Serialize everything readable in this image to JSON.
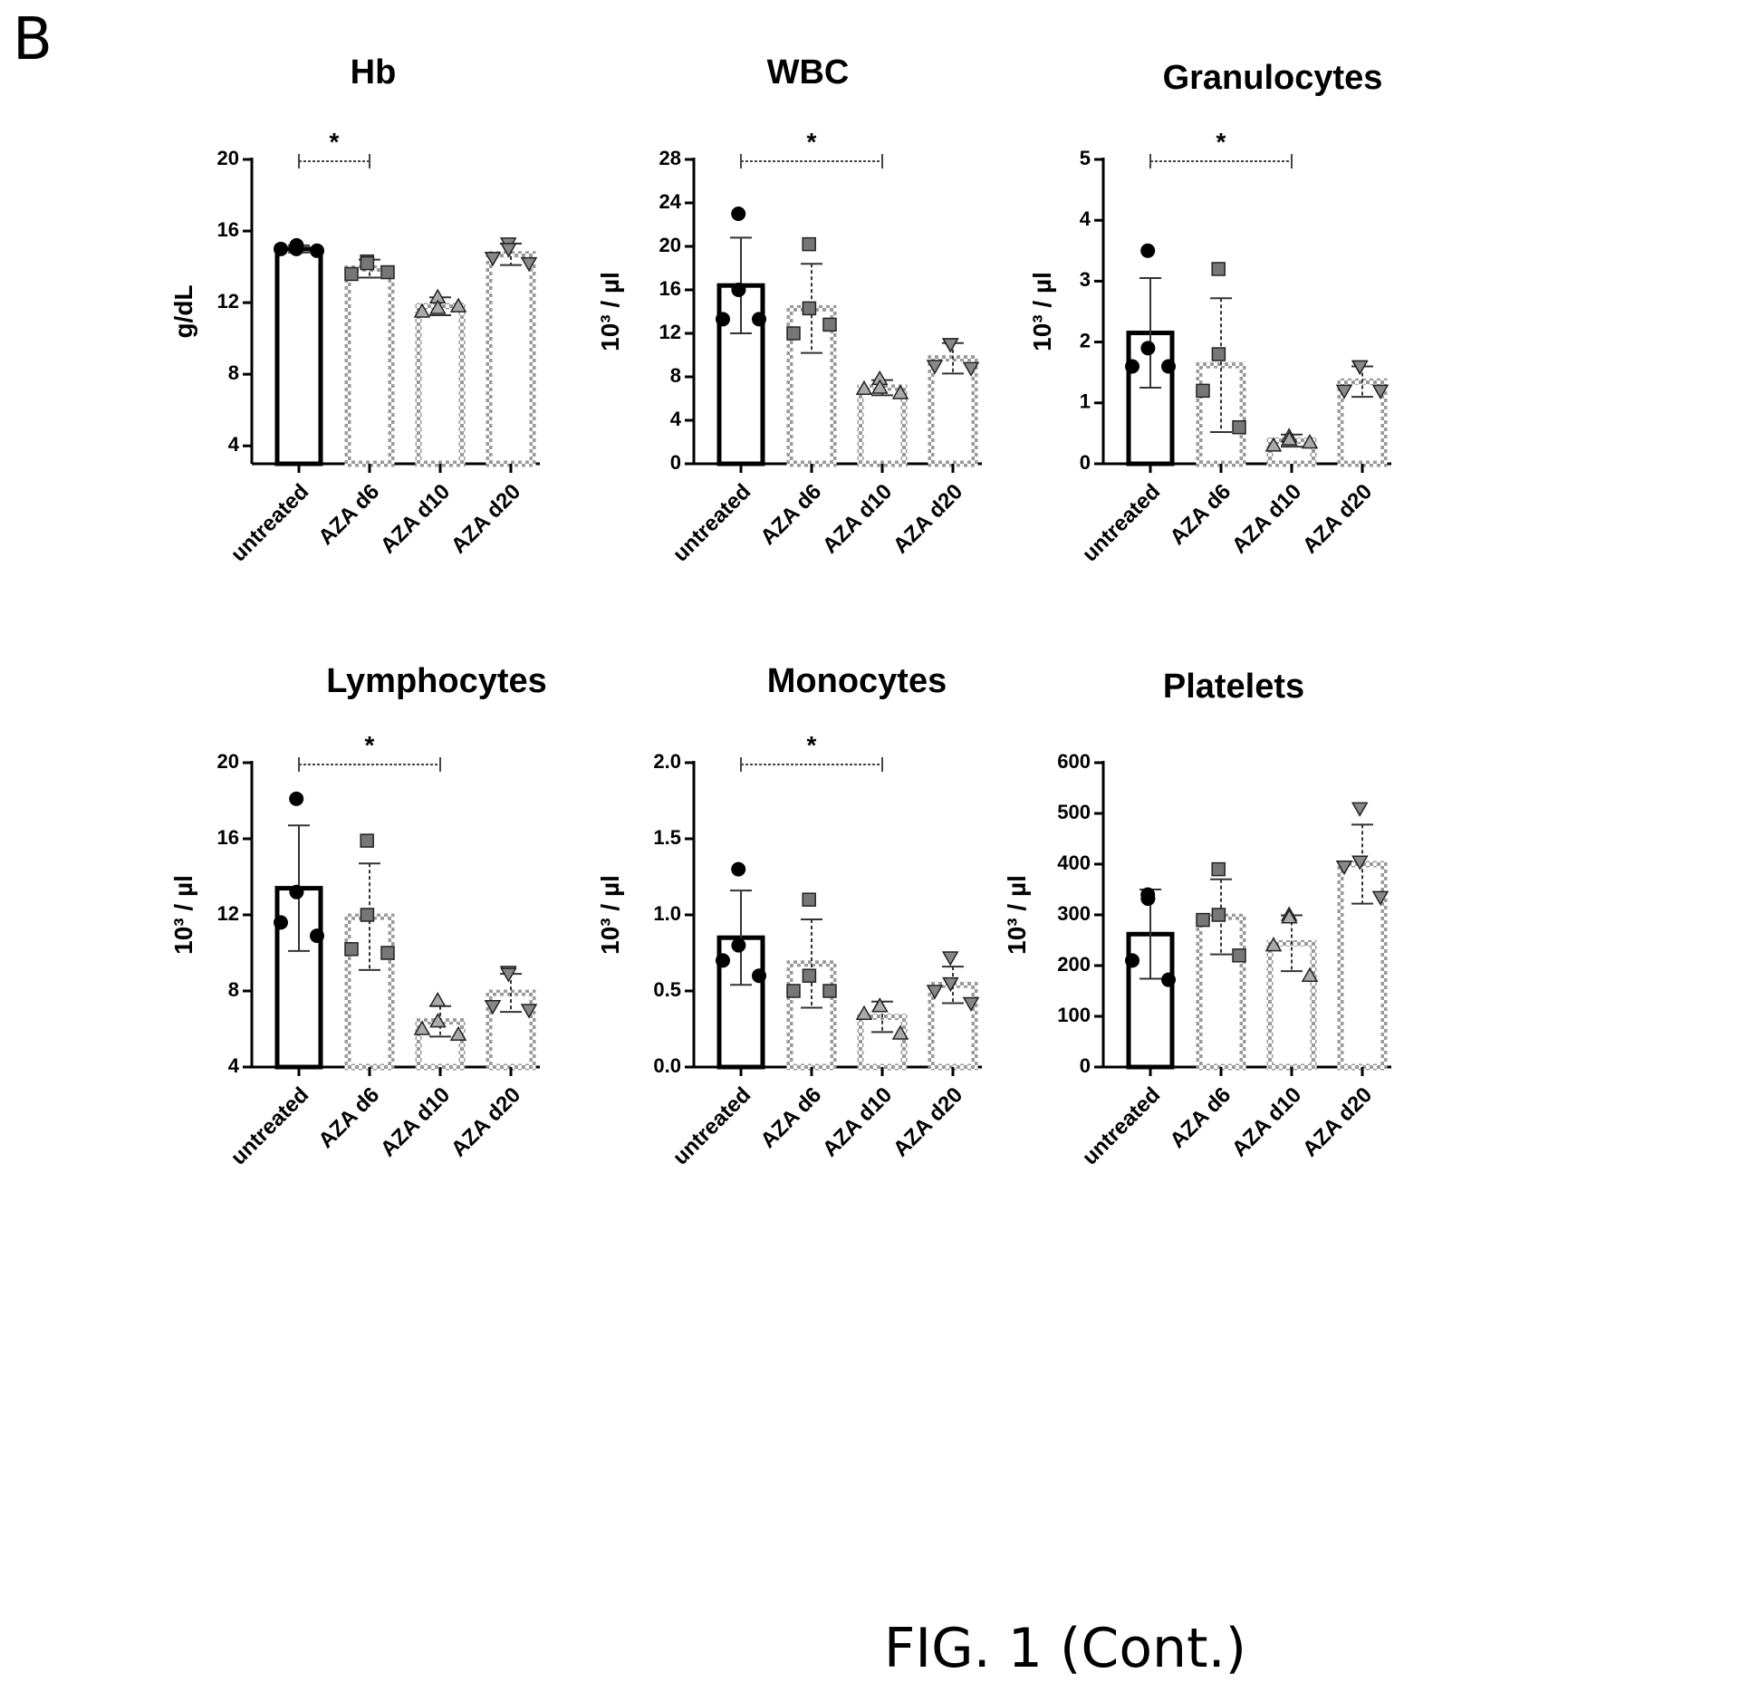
{
  "figure": {
    "panel_letter": "B",
    "caption": "FIG. 1 (Cont.)"
  },
  "chart_data": [
    {
      "type": "bar",
      "title": "Hb",
      "ylabel": "g/dL",
      "ylim": [
        3,
        20
      ],
      "yticks": [
        4,
        8,
        12,
        16,
        20
      ],
      "categories": [
        "untreated",
        "AZA d6",
        "AZA d10",
        "AZA d20"
      ],
      "values": [
        15.0,
        13.9,
        11.8,
        14.7
      ],
      "sd": [
        0.2,
        0.5,
        0.5,
        0.6
      ],
      "points": [
        [
          15.0,
          15.2,
          15.0,
          14.9
        ],
        [
          14.3,
          14.2,
          13.6,
          13.7
        ],
        [
          12.3,
          11.7,
          11.5,
          11.8
        ],
        [
          15.3,
          15.0,
          14.5,
          14.2
        ]
      ],
      "significance": [
        {
          "from": 0,
          "to": 1,
          "label": "*"
        }
      ]
    },
    {
      "type": "bar",
      "title": "WBC",
      "ylabel": "10³ / µl",
      "ylim": [
        0,
        28
      ],
      "yticks": [
        0,
        4,
        8,
        12,
        16,
        20,
        24,
        28
      ],
      "categories": [
        "untreated",
        "AZA d6",
        "AZA d10",
        "AZA d20"
      ],
      "values": [
        16.4,
        14.3,
        7.0,
        9.7
      ],
      "sd": [
        4.4,
        4.1,
        0.7,
        1.4
      ],
      "points": [
        [
          23.0,
          16.0,
          13.3,
          13.3
        ],
        [
          20.2,
          14.3,
          12.0,
          12.8
        ],
        [
          7.8,
          7.0,
          6.9,
          6.5
        ],
        [
          11.0,
          11.0,
          9.0,
          8.8
        ]
      ],
      "significance": [
        {
          "from": 0,
          "to": 2,
          "label": "*"
        }
      ]
    },
    {
      "type": "bar",
      "title": "Granulocytes",
      "ylabel": "10³ / µl",
      "ylim": [
        0,
        5
      ],
      "yticks": [
        0,
        1,
        2,
        3,
        4,
        5
      ],
      "categories": [
        "untreated",
        "AZA d6",
        "AZA d10",
        "AZA d20"
      ],
      "values": [
        2.15,
        1.62,
        0.38,
        1.35
      ],
      "sd": [
        0.9,
        1.1,
        0.1,
        0.25
      ],
      "points": [
        [
          3.5,
          1.9,
          1.6,
          1.6
        ],
        [
          3.2,
          1.8,
          1.2,
          0.6
        ],
        [
          0.45,
          0.4,
          0.3,
          0.35
        ],
        [
          1.6,
          1.6,
          1.2,
          1.2
        ]
      ],
      "significance": [
        {
          "from": 0,
          "to": 2,
          "label": "*"
        }
      ]
    },
    {
      "type": "bar",
      "title": "Lymphocytes",
      "ylabel": "10³ / µl",
      "ylim": [
        4,
        20
      ],
      "yticks": [
        4,
        8,
        12,
        16,
        20
      ],
      "categories": [
        "untreated",
        "AZA d6",
        "AZA d10",
        "AZA d20"
      ],
      "values": [
        13.4,
        11.9,
        6.4,
        7.9
      ],
      "sd": [
        3.3,
        2.8,
        0.8,
        1.0
      ],
      "points": [
        [
          18.1,
          13.2,
          11.6,
          10.9
        ],
        [
          15.9,
          12.0,
          10.2,
          10.0
        ],
        [
          7.5,
          6.4,
          6.0,
          5.7
        ],
        [
          9.0,
          8.9,
          7.2,
          7.0
        ]
      ],
      "significance": [
        {
          "from": 0,
          "to": 2,
          "label": "*"
        }
      ]
    },
    {
      "type": "bar",
      "title": "Monocytes",
      "ylabel": "10³ / µl",
      "ylim": [
        0,
        2.0
      ],
      "yticks": [
        0.0,
        0.5,
        1.0,
        1.5,
        2.0
      ],
      "categories": [
        "untreated",
        "AZA d6",
        "AZA d10",
        "AZA d20"
      ],
      "values": [
        0.85,
        0.68,
        0.33,
        0.54
      ],
      "sd": [
        0.31,
        0.29,
        0.1,
        0.12
      ],
      "points": [
        [
          1.3,
          0.8,
          0.7,
          0.6
        ],
        [
          1.1,
          0.6,
          0.5,
          0.5
        ],
        [
          0.4,
          0.4,
          0.35,
          0.22
        ],
        [
          0.72,
          0.55,
          0.5,
          0.42
        ]
      ],
      "significance": [
        {
          "from": 0,
          "to": 2,
          "label": "*"
        }
      ]
    },
    {
      "type": "bar",
      "title": "Platelets",
      "ylabel": "10³ / µl",
      "ylim": [
        0,
        600
      ],
      "yticks": [
        0,
        100,
        200,
        300,
        400,
        500,
        600
      ],
      "categories": [
        "untreated",
        "AZA d6",
        "AZA d10",
        "AZA d20"
      ],
      "values": [
        262,
        296,
        244,
        400
      ],
      "sd": [
        88,
        74,
        55,
        78
      ],
      "points": [
        [
          340,
          332,
          210,
          172
        ],
        [
          390,
          300,
          290,
          220
        ],
        [
          300,
          295,
          240,
          180
        ],
        [
          510,
          405,
          395,
          335
        ]
      ],
      "significance": []
    }
  ]
}
